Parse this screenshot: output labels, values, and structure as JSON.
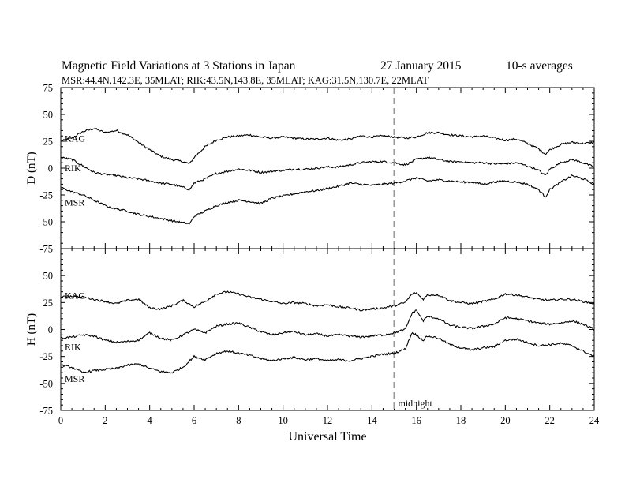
{
  "header": {
    "title": "Magnetic Field Variations at 3 Stations in Japan",
    "date": "27 January 2015",
    "averaging": "10-s averages",
    "stations_line": "MSR:44.4N,142.3E, 35MLAT;  RIK:43.5N,143.8E, 35MLAT;  KAG:31.5N,130.7E, 22MLAT"
  },
  "chart_data": [
    {
      "type": "line",
      "ylabel": "D (nT)",
      "xlim": [
        0,
        24
      ],
      "ylim": [
        -75,
        75
      ],
      "yticks": [
        75,
        50,
        25,
        0,
        -25,
        -50,
        -75
      ],
      "series": [
        {
          "name": "KAG",
          "x": [
            0,
            0.5,
            1,
            1.5,
            2,
            2.5,
            3,
            3.5,
            4,
            4.5,
            5,
            5.5,
            5.8,
            6,
            6.5,
            7,
            7.5,
            8,
            8.5,
            9,
            9.5,
            10,
            10.5,
            11,
            11.5,
            12,
            12.5,
            13,
            13.5,
            14,
            14.5,
            15,
            15.5,
            16,
            16.5,
            17,
            17.5,
            18,
            18.5,
            19,
            19.5,
            20,
            20.5,
            21,
            21.5,
            21.8,
            22,
            22.5,
            23,
            23.5,
            24
          ],
          "y": [
            25,
            28,
            34,
            37,
            33,
            35,
            31,
            24,
            17,
            11,
            8,
            6,
            4,
            10,
            20,
            26,
            29,
            30,
            31,
            29,
            28,
            29,
            28,
            27,
            27,
            28,
            26,
            27,
            30,
            29,
            30,
            29,
            28,
            29,
            33,
            33,
            31,
            30,
            29,
            30,
            28,
            26,
            27,
            23,
            18,
            13,
            17,
            22,
            24,
            23,
            24
          ]
        },
        {
          "name": "RIK",
          "x": [
            0,
            0.5,
            1,
            1.5,
            2,
            2.5,
            3,
            3.5,
            4,
            4.5,
            5,
            5.5,
            5.8,
            6,
            6.5,
            7,
            7.5,
            8,
            8.5,
            9,
            9.5,
            10,
            10.5,
            11,
            11.5,
            12,
            12.5,
            13,
            13.5,
            14,
            14.5,
            15,
            15.5,
            16,
            16.5,
            17,
            17.5,
            18,
            18.5,
            19,
            19.5,
            20,
            20.5,
            21,
            21.5,
            21.8,
            22,
            22.5,
            23,
            23.5,
            24
          ],
          "y": [
            10,
            8,
            2,
            -4,
            -6,
            -7,
            -9,
            -10,
            -12,
            -14,
            -15,
            -18,
            -20,
            -14,
            -10,
            -5,
            -3,
            -1,
            -2,
            -4,
            -3,
            -2,
            -1,
            -1,
            0,
            1,
            1,
            3,
            5,
            6,
            6,
            5,
            3,
            8,
            10,
            8,
            6,
            6,
            5,
            5,
            4,
            4,
            5,
            2,
            -2,
            -7,
            -1,
            5,
            8,
            5,
            1
          ]
        },
        {
          "name": "MSR",
          "x": [
            0,
            0.5,
            1,
            1.5,
            2,
            2.5,
            3,
            3.5,
            4,
            4.5,
            5,
            5.5,
            5.8,
            6,
            6.5,
            7,
            7.5,
            8,
            8.5,
            9,
            9.5,
            10,
            10.5,
            11,
            11.5,
            12,
            12.5,
            13,
            13.5,
            14,
            14.5,
            15,
            15.5,
            16,
            16.5,
            17,
            17.5,
            18,
            18.5,
            19,
            19.5,
            20,
            20.5,
            21,
            21.5,
            21.8,
            22,
            22.5,
            23,
            23.5,
            24
          ],
          "y": [
            -18,
            -22,
            -25,
            -30,
            -35,
            -38,
            -40,
            -43,
            -45,
            -47,
            -49,
            -51,
            -52,
            -45,
            -40,
            -35,
            -32,
            -30,
            -31,
            -33,
            -28,
            -26,
            -24,
            -22,
            -21,
            -19,
            -17,
            -14,
            -15,
            -16,
            -15,
            -14,
            -12,
            -9,
            -12,
            -11,
            -12,
            -13,
            -13,
            -15,
            -13,
            -12,
            -13,
            -15,
            -20,
            -27,
            -20,
            -13,
            -7,
            -10,
            -15
          ]
        }
      ],
      "annotations": []
    },
    {
      "type": "line",
      "xlabel": "Universal Time",
      "ylabel": "H (nT)",
      "xlim": [
        0,
        24
      ],
      "ylim": [
        -75,
        75
      ],
      "xticks": [
        0,
        2,
        4,
        6,
        8,
        10,
        12,
        14,
        16,
        18,
        20,
        22,
        24
      ],
      "yticks": [
        75,
        50,
        25,
        0,
        -25,
        -50,
        -75
      ],
      "series": [
        {
          "name": "KAG",
          "x": [
            0,
            0.5,
            1,
            1.5,
            2,
            2.5,
            3,
            3.5,
            4,
            4.5,
            5,
            5.5,
            6,
            6.5,
            7,
            7.5,
            8,
            8.5,
            9,
            9.5,
            10,
            10.5,
            11,
            11.5,
            12,
            12.5,
            13,
            13.5,
            14,
            14.5,
            15,
            15.5,
            15.8,
            16,
            16.3,
            16.5,
            17,
            17.5,
            18,
            18.5,
            19,
            19.5,
            20,
            20.5,
            21,
            21.5,
            22,
            22.5,
            23,
            23.5,
            24
          ],
          "y": [
            30,
            31,
            30,
            28,
            26,
            24,
            27,
            28,
            20,
            19,
            22,
            27,
            21,
            26,
            33,
            35,
            33,
            30,
            28,
            26,
            24,
            25,
            24,
            22,
            23,
            21,
            20,
            18,
            19,
            20,
            22,
            25,
            33,
            34,
            28,
            32,
            32,
            27,
            25,
            24,
            26,
            28,
            33,
            32,
            30,
            28,
            27,
            28,
            28,
            26,
            24
          ]
        },
        {
          "name": "RIK",
          "x": [
            0,
            0.5,
            1,
            1.5,
            2,
            2.5,
            3,
            3.5,
            4,
            4.5,
            5,
            5.5,
            6,
            6.5,
            7,
            7.5,
            8,
            8.5,
            9,
            9.5,
            10,
            10.5,
            11,
            11.5,
            12,
            12.5,
            13,
            13.5,
            14,
            14.5,
            15,
            15.5,
            15.8,
            16,
            16.3,
            16.5,
            17,
            17.5,
            18,
            18.5,
            19,
            19.5,
            20,
            20.5,
            21,
            21.5,
            22,
            22.5,
            23,
            23.5,
            24
          ],
          "y": [
            -8,
            -7,
            -5,
            -6,
            -10,
            -12,
            -11,
            -10,
            -3,
            -8,
            -10,
            -5,
            0,
            -3,
            3,
            5,
            6,
            2,
            -2,
            -5,
            -3,
            -2,
            -5,
            -4,
            -6,
            -5,
            -6,
            -7,
            -6,
            -5,
            -3,
            0,
            15,
            18,
            8,
            12,
            10,
            4,
            2,
            1,
            3,
            5,
            11,
            10,
            8,
            6,
            5,
            6,
            8,
            5,
            0
          ]
        },
        {
          "name": "MSR",
          "x": [
            0,
            0.5,
            1,
            1.5,
            2,
            2.5,
            3,
            3.5,
            4,
            4.5,
            5,
            5.5,
            6,
            6.5,
            7,
            7.5,
            8,
            8.5,
            9,
            9.5,
            10,
            10.5,
            11,
            11.5,
            12,
            12.5,
            13,
            13.5,
            14,
            14.5,
            15,
            15.5,
            15.8,
            16,
            16.3,
            16.5,
            17,
            17.5,
            18,
            18.5,
            19,
            19.5,
            20,
            20.5,
            21,
            21.5,
            22,
            22.5,
            23,
            23.5,
            24
          ],
          "y": [
            -33,
            -35,
            -40,
            -38,
            -37,
            -36,
            -33,
            -32,
            -36,
            -39,
            -40,
            -35,
            -25,
            -28,
            -22,
            -20,
            -22,
            -24,
            -27,
            -29,
            -27,
            -26,
            -28,
            -27,
            -29,
            -28,
            -29,
            -27,
            -25,
            -23,
            -22,
            -18,
            -3,
            -5,
            -10,
            -6,
            -8,
            -14,
            -17,
            -19,
            -17,
            -16,
            -10,
            -9,
            -12,
            -15,
            -14,
            -13,
            -15,
            -20,
            -25
          ]
        }
      ],
      "annotations": [
        {
          "text": "midnight",
          "x": 15
        }
      ]
    }
  ]
}
